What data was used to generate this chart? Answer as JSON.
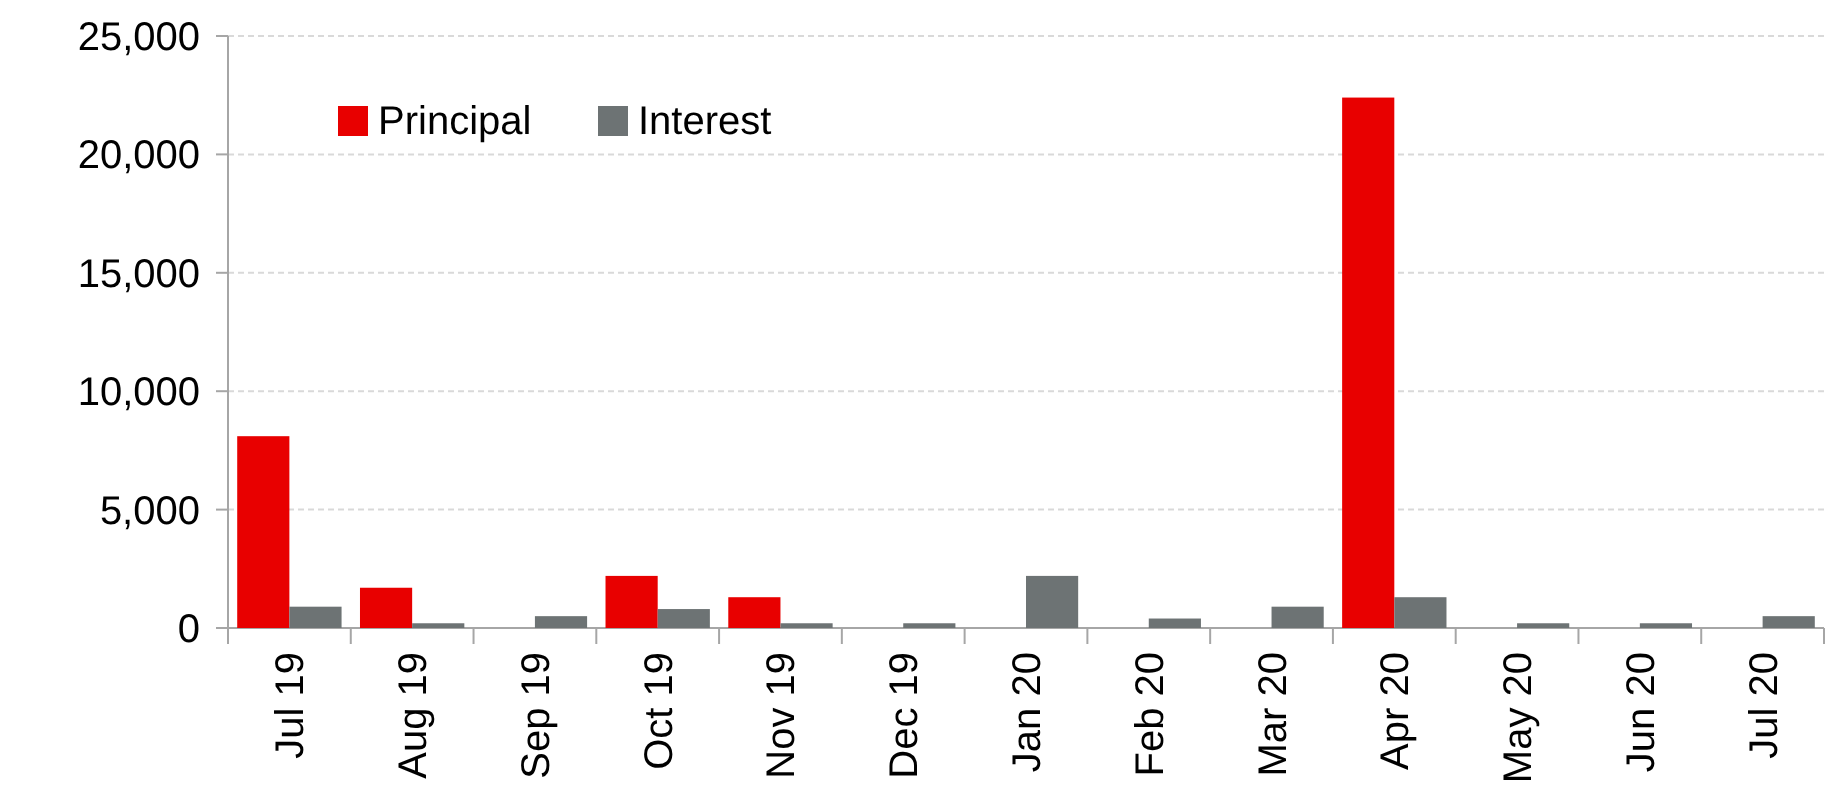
{
  "chart_data": {
    "type": "bar",
    "categories": [
      "Jul 19",
      "Aug 19",
      "Sep 19",
      "Oct 19",
      "Nov 19",
      "Dec 19",
      "Jan 20",
      "Feb 20",
      "Mar 20",
      "Apr 20",
      "May 20",
      "Jun 20",
      "Jul 20"
    ],
    "series": [
      {
        "name": "Principal",
        "color": "#e80000",
        "values": [
          8100,
          1700,
          0,
          2200,
          1300,
          0,
          0,
          0,
          0,
          22400,
          0,
          0,
          0
        ]
      },
      {
        "name": "Interest",
        "color": "#6d7374",
        "values": [
          900,
          200,
          500,
          800,
          200,
          200,
          2200,
          400,
          900,
          1300,
          200,
          200,
          500
        ]
      }
    ],
    "ylim": [
      0,
      25000
    ],
    "yticks": [
      {
        "value": 0,
        "label": "0"
      },
      {
        "value": 5000,
        "label": "5,000"
      },
      {
        "value": 10000,
        "label": "10,000"
      },
      {
        "value": 15000,
        "label": "15,000"
      },
      {
        "value": 20000,
        "label": "20,000"
      },
      {
        "value": 25000,
        "label": "25,000"
      }
    ],
    "grid": "y",
    "legend": "top left"
  }
}
